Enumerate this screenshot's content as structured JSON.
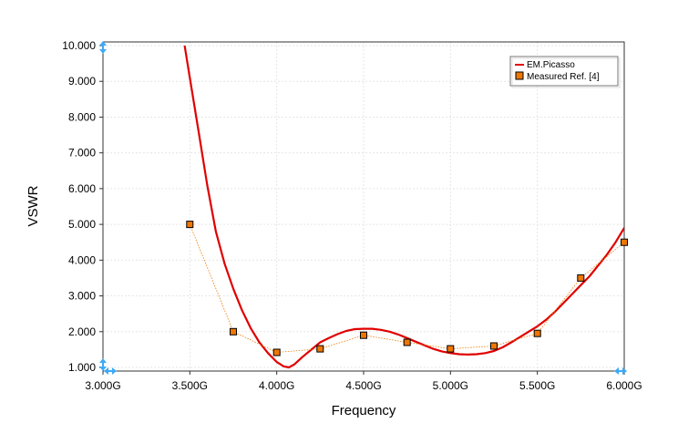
{
  "chart_data": {
    "type": "line",
    "xlabel": "Frequency",
    "ylabel": "VSWR",
    "xlim": [
      3.0,
      6.0
    ],
    "ylim": [
      1.0,
      10.0
    ],
    "x_ticks": [
      3.0,
      3.5,
      4.0,
      4.5,
      5.0,
      5.5,
      6.0
    ],
    "x_tick_labels": [
      "3.000G",
      "3.500G",
      "4.000G",
      "4.500G",
      "5.000G",
      "5.500G",
      "6.000G"
    ],
    "y_ticks": [
      1,
      2,
      3,
      4,
      5,
      6,
      7,
      8,
      9,
      10
    ],
    "y_tick_labels": [
      "1.000",
      "2.000",
      "3.000",
      "4.000",
      "5.000",
      "6.000",
      "7.000",
      "8.000",
      "9.000",
      "10.000"
    ],
    "grid": true,
    "legend_position": "top-right",
    "series": [
      {
        "name": "EM.Picasso",
        "style": "line",
        "color": "#e00000",
        "x": [
          3.47,
          3.5,
          3.55,
          3.6,
          3.65,
          3.7,
          3.75,
          3.8,
          3.85,
          3.9,
          3.95,
          4.0,
          4.04,
          4.07,
          4.1,
          4.15,
          4.2,
          4.25,
          4.3,
          4.35,
          4.4,
          4.45,
          4.5,
          4.55,
          4.6,
          4.65,
          4.7,
          4.75,
          4.8,
          4.85,
          4.9,
          4.95,
          5.0,
          5.05,
          5.1,
          5.15,
          5.2,
          5.25,
          5.3,
          5.35,
          5.4,
          5.45,
          5.5,
          5.55,
          5.6,
          5.65,
          5.7,
          5.75,
          5.8,
          5.85,
          5.9,
          5.95,
          6.0
        ],
        "y": [
          10.0,
          9.1,
          7.6,
          6.1,
          4.8,
          3.9,
          3.2,
          2.6,
          2.1,
          1.7,
          1.4,
          1.15,
          1.03,
          1.0,
          1.08,
          1.3,
          1.5,
          1.7,
          1.82,
          1.93,
          2.02,
          2.07,
          2.08,
          2.08,
          2.05,
          2.0,
          1.92,
          1.82,
          1.72,
          1.62,
          1.52,
          1.45,
          1.4,
          1.37,
          1.36,
          1.37,
          1.4,
          1.46,
          1.56,
          1.7,
          1.85,
          2.0,
          2.15,
          2.33,
          2.55,
          2.8,
          3.05,
          3.3,
          3.55,
          3.85,
          4.15,
          4.5,
          4.9
        ]
      },
      {
        "name": "Measured Ref. [4]",
        "style": "marker",
        "color": "#ee7700",
        "x": [
          3.5,
          3.75,
          4.0,
          4.25,
          4.5,
          4.75,
          5.0,
          5.25,
          5.5,
          5.75,
          6.0
        ],
        "y": [
          5.0,
          2.0,
          1.42,
          1.52,
          1.9,
          1.7,
          1.52,
          1.6,
          1.95,
          3.5,
          4.5
        ]
      }
    ]
  }
}
